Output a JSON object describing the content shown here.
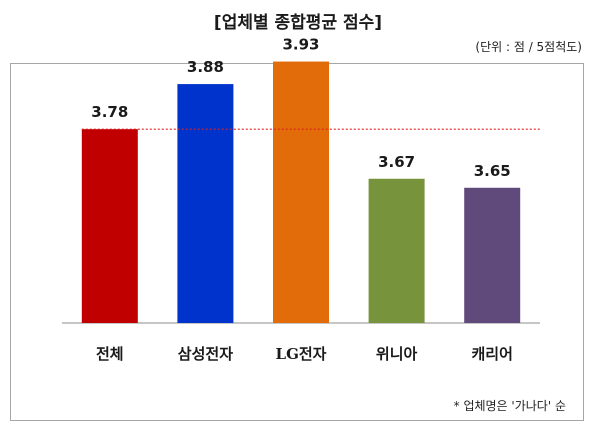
{
  "header": {
    "title": "[업체별 종합평균 점수]",
    "unit": "(단위 : 점 / 5점척도)"
  },
  "footnote": "* 업체명은 '가나다' 순",
  "chart_data": {
    "type": "bar",
    "title": "[업체별 종합평균 점수]",
    "categories": [
      "전체",
      "삼성전자",
      "LG전자",
      "위니아",
      "캐리어"
    ],
    "values": [
      3.78,
      3.88,
      3.93,
      3.67,
      3.65
    ],
    "value_labels": [
      "3.78",
      "3.88",
      "3.93",
      "3.67",
      "3.65"
    ],
    "colors": [
      "#c00000",
      "#0033cc",
      "#e36c0a",
      "#77933c",
      "#604a7b"
    ],
    "reference_line": {
      "value": 3.78,
      "style": "dotted",
      "color": "#e02020"
    },
    "ylim": [
      3.35,
      4.0
    ],
    "xlabel": "",
    "ylabel": "",
    "grid": false,
    "legend": "none"
  }
}
